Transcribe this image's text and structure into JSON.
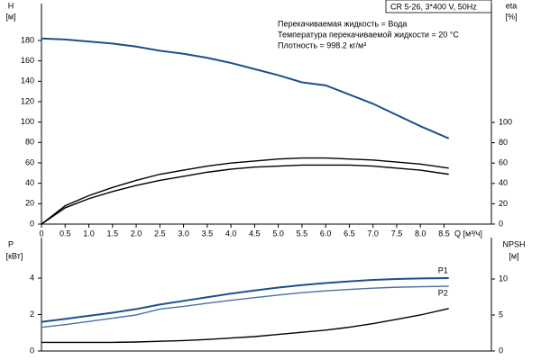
{
  "chart_data": [
    {
      "type": "line",
      "ylabel": "H",
      "yunit": "[м]",
      "y2label": "eta",
      "y2unit": "[%]",
      "xlabel": "Q [м³/ч]",
      "title": "CR 5-26, 3*400 V, 50Hz",
      "annotations": [
        "Перекачиваемая жидкость = Вода",
        "Температура перекачиваемой жидкости = 20 °C",
        "Плотность = 998.2 кг/м³"
      ],
      "x": [
        0,
        0.5,
        1,
        1.5,
        2,
        2.5,
        3,
        3.5,
        4,
        4.5,
        5,
        5.5,
        6,
        6.5,
        7,
        7.5,
        8,
        8.6
      ],
      "xlim": [
        0,
        9.5
      ],
      "xticks": [
        0,
        0.5,
        {
          "value": 1,
          "label": "1.0"
        },
        1.5,
        {
          "value": 2,
          "label": "2.0"
        },
        2.5,
        {
          "value": 3,
          "label": "3.0"
        },
        3.5,
        {
          "value": 4,
          "label": "4.0"
        },
        4.5,
        {
          "value": 5,
          "label": "5.0"
        },
        5.5,
        {
          "value": 6,
          "label": "6.0"
        },
        6.5,
        {
          "value": 7,
          "label": "7.0"
        },
        7.5,
        {
          "value": 8,
          "label": "8.0"
        },
        8.5
      ],
      "ylim": [
        0,
        180
      ],
      "yticks": [
        0,
        20,
        40,
        60,
        80,
        100,
        120,
        140,
        160,
        180
      ],
      "y2lim": [
        0,
        100
      ],
      "y2ticks": [
        0,
        20,
        40,
        60,
        80,
        100
      ],
      "series": [
        {
          "color": "#1d4f8c",
          "values": [
            182,
            181,
            179,
            177,
            174,
            170,
            167,
            163,
            158,
            152,
            146,
            139,
            136,
            127,
            118,
            107,
            96,
            84
          ]
        },
        {
          "color": "#000000",
          "axis": "y2",
          "values": [
            0,
            18,
            28,
            36,
            43,
            49,
            53,
            57,
            60,
            62,
            64,
            65,
            65,
            64,
            63,
            61,
            59,
            55
          ]
        },
        {
          "color": "#000000",
          "axis": "y2",
          "values": [
            0,
            16,
            25,
            32,
            38,
            43,
            47,
            51,
            54,
            56,
            57,
            58,
            58,
            58,
            57,
            55,
            53,
            49
          ]
        }
      ]
    },
    {
      "type": "line",
      "ylabel": "P",
      "yunit": "[кВт]",
      "y2label": "NPSH",
      "y2unit": "[м]",
      "x": [
        0,
        0.5,
        1,
        1.5,
        2,
        2.5,
        3,
        3.5,
        4,
        4.5,
        5,
        5.5,
        6,
        6.5,
        7,
        7.5,
        8,
        8.6
      ],
      "xlim": [
        0,
        9.5
      ],
      "ylim": [
        0,
        4
      ],
      "yticks": [
        0,
        2,
        4
      ],
      "y2lim": [
        0,
        10
      ],
      "y2ticks": [
        0,
        5,
        10
      ],
      "series": [
        {
          "name": "P1",
          "color": "#1d4f8c",
          "values": [
            1.6,
            1.76,
            1.93,
            2.1,
            2.3,
            2.55,
            2.75,
            2.95,
            3.15,
            3.32,
            3.48,
            3.62,
            3.73,
            3.82,
            3.9,
            3.95,
            3.98,
            4.0
          ]
        },
        {
          "name": "P2",
          "color": "#4a6fa5",
          "values": [
            1.3,
            1.45,
            1.62,
            1.8,
            1.98,
            2.3,
            2.45,
            2.62,
            2.78,
            2.93,
            3.07,
            3.2,
            3.3,
            3.38,
            3.45,
            3.5,
            3.53,
            3.55
          ]
        },
        {
          "color": "#000000",
          "axis": "y2",
          "values": [
            1.2,
            1.2,
            1.2,
            1.2,
            1.25,
            1.35,
            1.45,
            1.6,
            1.8,
            2.0,
            2.3,
            2.6,
            2.9,
            3.3,
            3.8,
            4.4,
            5.0,
            5.9
          ]
        }
      ]
    }
  ]
}
